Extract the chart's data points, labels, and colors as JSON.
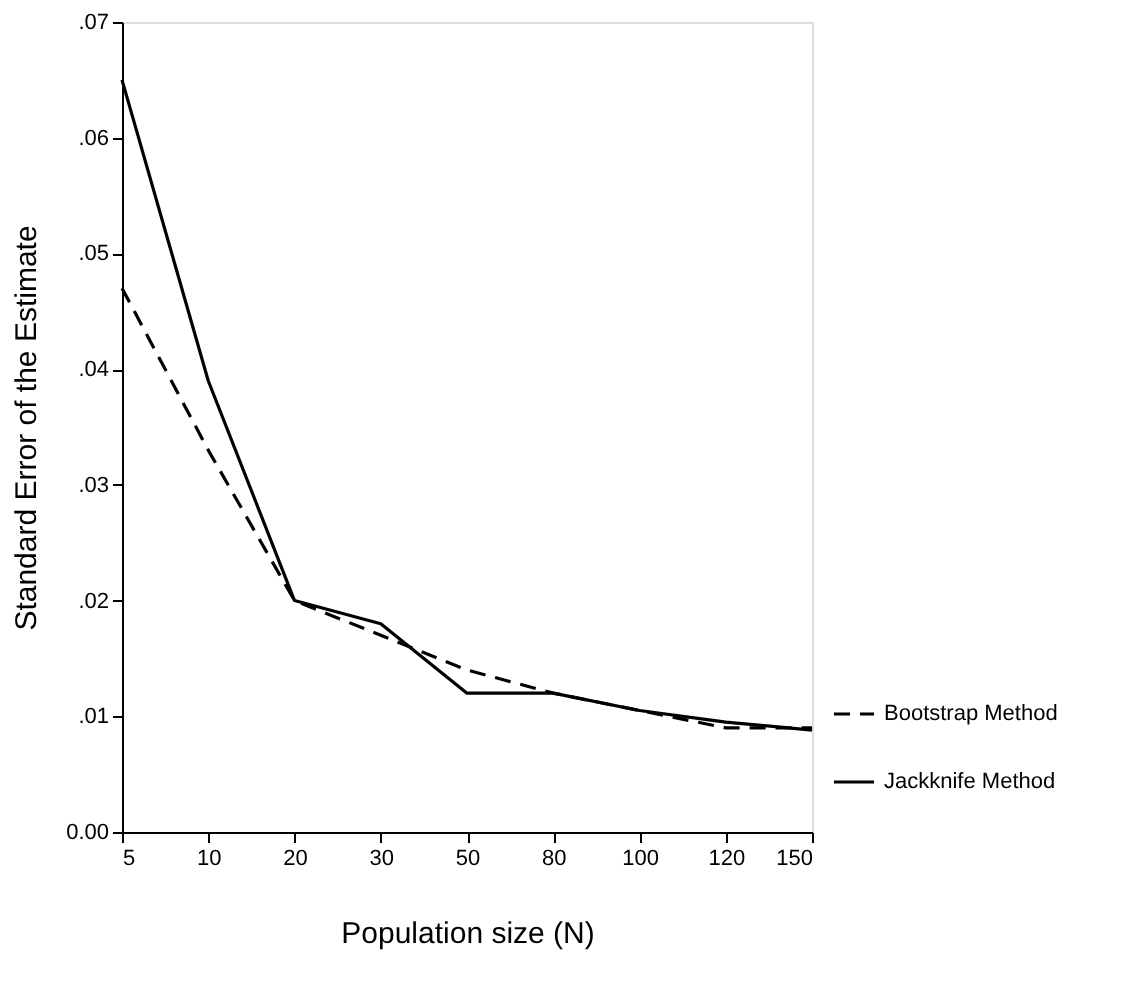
{
  "chart_data": {
    "type": "line",
    "xlabel": "Population size (N)",
    "ylabel": "Standard Error of the Estimate",
    "categories": [
      "5",
      "10",
      "20",
      "30",
      "50",
      "80",
      "100",
      "120",
      "150"
    ],
    "series": [
      {
        "name": "Bootstrap Method",
        "color": "#000000",
        "line_style": "dashed",
        "values": [
          0.047,
          0.033,
          0.02,
          0.017,
          0.014,
          0.012,
          0.0105,
          0.009,
          0.009
        ]
      },
      {
        "name": "Jackknife Method",
        "color": "#000000",
        "line_style": "solid",
        "values": [
          0.065,
          0.039,
          0.02,
          0.018,
          0.012,
          0.012,
          0.0105,
          0.0095,
          0.0088
        ]
      }
    ],
    "ylim": [
      0,
      0.07
    ],
    "yticks": [
      {
        "value": 0,
        "label": "0.00"
      },
      {
        "value": 0.01,
        "label": ".01"
      },
      {
        "value": 0.02,
        "label": ".02"
      },
      {
        "value": 0.03,
        "label": ".03"
      },
      {
        "value": 0.04,
        "label": ".04"
      },
      {
        "value": 0.05,
        "label": ".05"
      },
      {
        "value": 0.06,
        "label": ".06"
      },
      {
        "value": 0.07,
        "label": ".07"
      }
    ],
    "grid": false,
    "legend": "bottom right",
    "marker": "none"
  }
}
